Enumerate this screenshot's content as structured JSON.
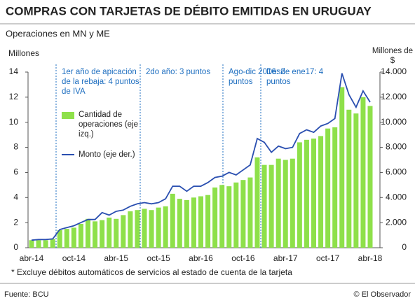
{
  "chart_data": {
    "type": "bar-line",
    "title": "COMPRAS CON TARJETAS DE DÉBITO EMITIDAS EN URUGUAY",
    "subtitle": "Operaciones en MN y ME",
    "y_label": "Millones",
    "y2_label": "Millones de $",
    "categories": [
      "abr-14",
      null,
      null,
      null,
      null,
      null,
      "oct-14",
      null,
      null,
      null,
      null,
      null,
      "abr-15",
      null,
      null,
      null,
      null,
      null,
      "oct-15",
      null,
      null,
      null,
      null,
      null,
      "abr-16",
      null,
      null,
      null,
      null,
      null,
      "oct-16",
      null,
      null,
      null,
      null,
      null,
      "abr-17",
      null,
      null,
      null,
      null,
      null,
      "oct-17",
      null,
      null,
      null,
      null,
      null,
      "abr-18"
    ],
    "series": [
      {
        "name": "Cantidad de operaciones (eje izq.)",
        "color": "#8ee04a",
        "values": [
          0.6,
          0.6,
          0.6,
          0.7,
          1.4,
          1.5,
          1.6,
          1.9,
          2.3,
          2.1,
          2.2,
          2.4,
          2.3,
          2.6,
          2.9,
          3.0,
          3.1,
          3.0,
          3.2,
          3.3,
          4.3,
          3.9,
          3.8,
          4.0,
          4.1,
          4.2,
          4.8,
          5.0,
          4.9,
          5.2,
          5.4,
          5.6,
          7.2,
          6.6,
          6.6,
          7.1,
          7.0,
          7.1,
          8.4,
          8.6,
          8.7,
          8.9,
          9.5,
          9.6,
          12.8,
          11.0,
          10.7,
          12.0,
          11.3
        ]
      },
      {
        "name": "Monto (eje der.)",
        "color": "#2a4fb0",
        "axis": "y2",
        "values": [
          600,
          650,
          650,
          700,
          1450,
          1600,
          1750,
          2000,
          2250,
          2250,
          2800,
          2600,
          2900,
          3000,
          3300,
          3500,
          3600,
          3500,
          3600,
          3900,
          4900,
          4900,
          4500,
          4900,
          4900,
          5200,
          5600,
          5700,
          6000,
          5800,
          6200,
          6600,
          8700,
          8400,
          7600,
          8100,
          7900,
          8000,
          9100,
          9400,
          9200,
          9700,
          9900,
          10300,
          13900,
          12200,
          11200,
          12500,
          11600
        ]
      }
    ],
    "ylim": [
      0,
      14
    ],
    "yticks": [
      0,
      2,
      4,
      6,
      8,
      10,
      12,
      14
    ],
    "y2lim": [
      0,
      14000
    ],
    "y2ticks": [
      0,
      {
        "value": 2000,
        "label": "2.000"
      },
      {
        "value": 4000,
        "label": "4.000"
      },
      {
        "value": 6000,
        "label": "6.000"
      },
      {
        "value": 8000,
        "label": "8.000"
      },
      {
        "value": 10000,
        "label": "10.000"
      },
      {
        "value": 12000,
        "label": "12.000"
      },
      {
        "value": 14000,
        "label": "14.000"
      }
    ],
    "annotations": [
      "1er año de apicación de la rebaja: 4 puntos de IVA",
      "2do año: 3 puntos",
      "Ago-dic 2016: 2 puntos",
      "Desde ene17: 4 puntos"
    ],
    "footnote": "* Excluye débitos automáticos de servicios al estado de cuenta de la tarjeta",
    "source": "Fuente: BCU",
    "credit": "© El Observador"
  }
}
